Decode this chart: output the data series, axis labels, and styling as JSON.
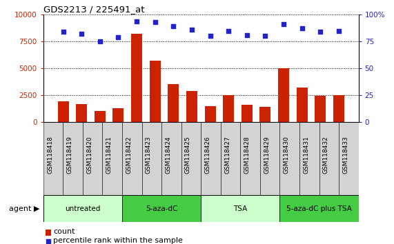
{
  "title": "GDS2213 / 225491_at",
  "categories": [
    "GSM118418",
    "GSM118419",
    "GSM118420",
    "GSM118421",
    "GSM118422",
    "GSM118423",
    "GSM118424",
    "GSM118425",
    "GSM118426",
    "GSM118427",
    "GSM118428",
    "GSM118429",
    "GSM118430",
    "GSM118431",
    "GSM118432",
    "GSM118433"
  ],
  "counts": [
    1900,
    1700,
    1050,
    1300,
    8200,
    5700,
    3500,
    2900,
    1450,
    2500,
    1600,
    1400,
    5000,
    3200,
    2450,
    2500
  ],
  "percentiles": [
    84,
    82,
    75,
    79,
    94,
    93,
    89,
    86,
    80,
    85,
    81,
    80,
    91,
    87,
    84,
    85
  ],
  "bar_color": "#cc2200",
  "dot_color": "#2222cc",
  "agent_groups": [
    {
      "label": "untreated",
      "start": 0,
      "end": 4,
      "color": "#ccffcc"
    },
    {
      "label": "5-aza-dC",
      "start": 4,
      "end": 8,
      "color": "#44cc44"
    },
    {
      "label": "TSA",
      "start": 8,
      "end": 12,
      "color": "#ccffcc"
    },
    {
      "label": "5-aza-dC plus TSA",
      "start": 12,
      "end": 16,
      "color": "#44cc44"
    }
  ],
  "left_yticks": [
    0,
    2500,
    5000,
    7500,
    10000
  ],
  "right_yticks": [
    0,
    25,
    50,
    75,
    100
  ],
  "ylim_left": [
    0,
    10000
  ],
  "ylim_right": [
    0,
    100
  ],
  "left_tick_color": "#cc2200",
  "right_tick_color": "#2222cc",
  "legend_count_label": "count",
  "legend_percentile_label": "percentile rank within the sample",
  "agent_label": "agent",
  "bg_color": "#ffffff",
  "plot_bg": "#ffffff",
  "grid_color": "#000000",
  "xticklabel_bg": "#d3d3d3"
}
